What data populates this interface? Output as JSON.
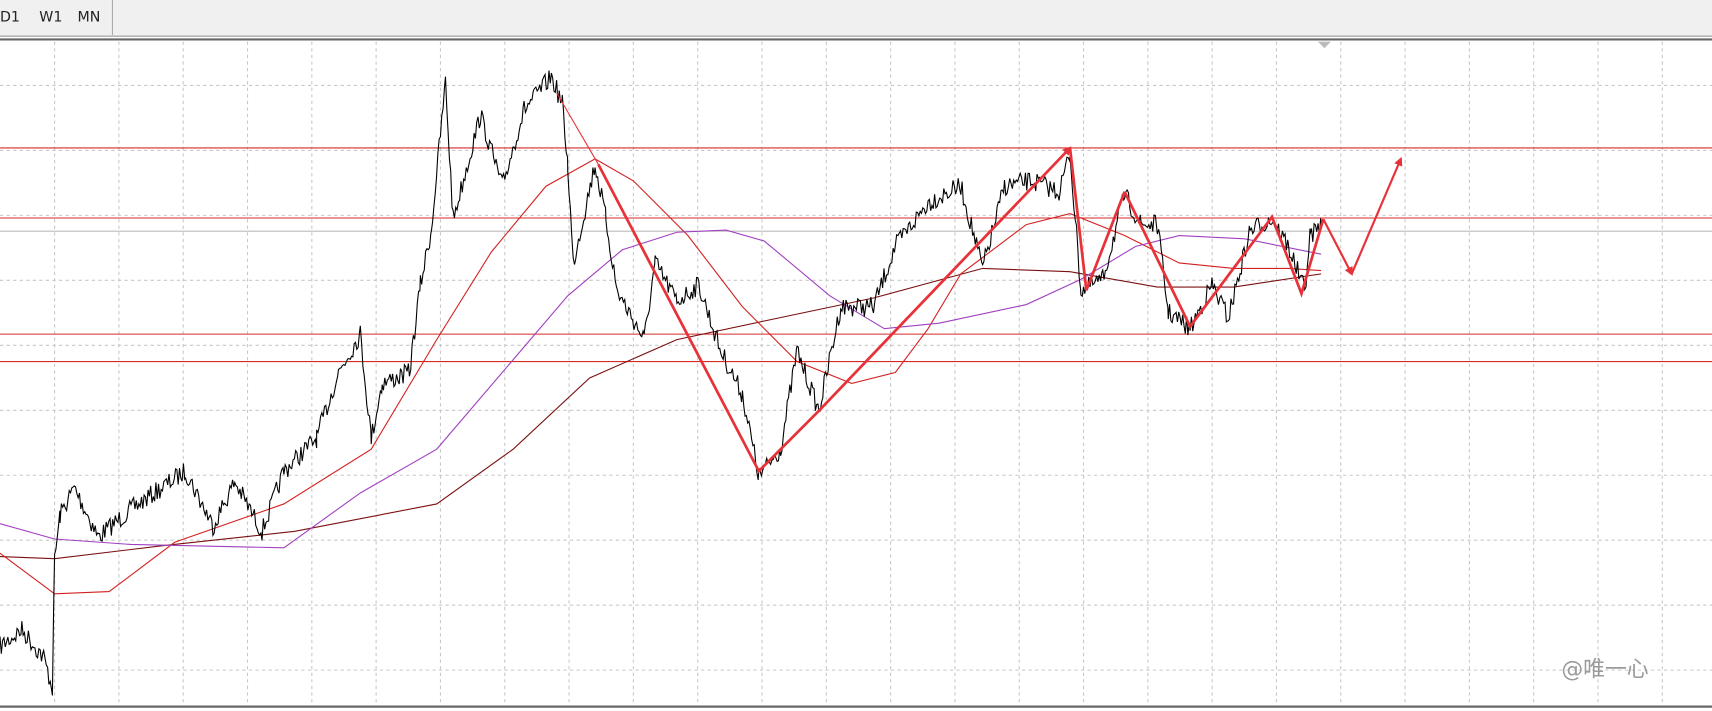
{
  "toolbar": {
    "tabs": [
      "D1",
      "W1",
      "MN"
    ]
  },
  "watermark": "@唯一心"
}
